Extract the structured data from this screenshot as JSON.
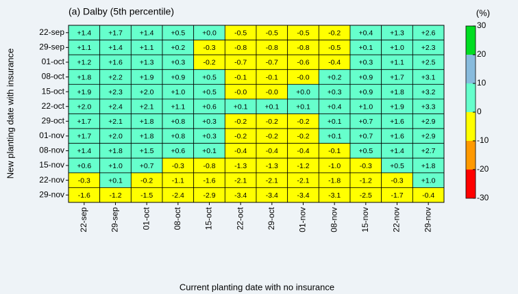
{
  "chart_data": {
    "type": "heatmap",
    "title": "(a) Dalby (5th percentile)",
    "x_label": "Current planting date with no insurance",
    "y_label": "New planting date with insurance",
    "x": [
      "22-sep",
      "29-sep",
      "01-oct",
      "08-oct",
      "15-oct",
      "22-oct",
      "29-oct",
      "01-nov",
      "08-nov",
      "15-nov",
      "22-nov",
      "29-nov"
    ],
    "y": [
      "22-sep",
      "29-sep",
      "01-oct",
      "08-oct",
      "15-oct",
      "22-oct",
      "29-oct",
      "01-nov",
      "08-nov",
      "15-nov",
      "22-nov",
      "29-nov"
    ],
    "values": [
      [
        1.4,
        1.7,
        1.4,
        0.5,
        0.0,
        -0.5,
        -0.5,
        -0.5,
        -0.2,
        0.4,
        1.3,
        2.6
      ],
      [
        1.1,
        1.4,
        1.1,
        0.2,
        -0.3,
        -0.8,
        -0.8,
        -0.8,
        -0.5,
        0.1,
        1.0,
        2.3
      ],
      [
        1.2,
        1.6,
        1.3,
        0.3,
        -0.2,
        -0.7,
        -0.7,
        -0.6,
        -0.4,
        0.3,
        1.1,
        2.5
      ],
      [
        1.8,
        2.2,
        1.9,
        0.9,
        0.5,
        -0.1,
        -0.1,
        -0.0,
        0.2,
        0.9,
        1.7,
        3.1
      ],
      [
        1.9,
        2.3,
        2.0,
        1.0,
        0.5,
        -0.0,
        -0.0,
        0.0,
        0.3,
        0.9,
        1.8,
        3.2
      ],
      [
        2.0,
        2.4,
        2.1,
        1.1,
        0.6,
        0.1,
        0.1,
        0.1,
        0.4,
        1.0,
        1.9,
        3.3
      ],
      [
        1.7,
        2.1,
        1.8,
        0.8,
        0.3,
        -0.2,
        -0.2,
        -0.2,
        0.1,
        0.7,
        1.6,
        2.9
      ],
      [
        1.7,
        2.0,
        1.8,
        0.8,
        0.3,
        -0.2,
        -0.2,
        -0.2,
        0.1,
        0.7,
        1.6,
        2.9
      ],
      [
        1.4,
        1.8,
        1.5,
        0.6,
        0.1,
        -0.4,
        -0.4,
        -0.4,
        -0.1,
        0.5,
        1.4,
        2.7
      ],
      [
        0.6,
        1.0,
        0.7,
        -0.3,
        -0.8,
        -1.3,
        -1.3,
        -1.2,
        -1.0,
        -0.3,
        0.5,
        1.8
      ],
      [
        -0.3,
        0.1,
        -0.2,
        -1.1,
        -1.6,
        -2.1,
        -2.1,
        -2.1,
        -1.8,
        -1.2,
        -0.3,
        1.0
      ],
      [
        -1.6,
        -1.2,
        -1.5,
        -2.4,
        -2.9,
        -3.4,
        -3.4,
        -3.4,
        -3.1,
        -2.5,
        -1.7,
        -0.4
      ]
    ],
    "value_labels": [
      [
        "+1.4",
        "+1.7",
        "+1.4",
        "+0.5",
        "+0.0",
        "-0.5",
        "-0.5",
        "-0.5",
        "-0.2",
        "+0.4",
        "+1.3",
        "+2.6"
      ],
      [
        "+1.1",
        "+1.4",
        "+1.1",
        "+0.2",
        "-0.3",
        "-0.8",
        "-0.8",
        "-0.8",
        "-0.5",
        "+0.1",
        "+1.0",
        "+2.3"
      ],
      [
        "+1.2",
        "+1.6",
        "+1.3",
        "+0.3",
        "-0.2",
        "-0.7",
        "-0.7",
        "-0.6",
        "-0.4",
        "+0.3",
        "+1.1",
        "+2.5"
      ],
      [
        "+1.8",
        "+2.2",
        "+1.9",
        "+0.9",
        "+0.5",
        "-0.1",
        "-0.1",
        "-0.0",
        "+0.2",
        "+0.9",
        "+1.7",
        "+3.1"
      ],
      [
        "+1.9",
        "+2.3",
        "+2.0",
        "+1.0",
        "+0.5",
        "-0.0",
        "-0.0",
        "+0.0",
        "+0.3",
        "+0.9",
        "+1.8",
        "+3.2"
      ],
      [
        "+2.0",
        "+2.4",
        "+2.1",
        "+1.1",
        "+0.6",
        "+0.1",
        "+0.1",
        "+0.1",
        "+0.4",
        "+1.0",
        "+1.9",
        "+3.3"
      ],
      [
        "+1.7",
        "+2.1",
        "+1.8",
        "+0.8",
        "+0.3",
        "-0.2",
        "-0.2",
        "-0.2",
        "+0.1",
        "+0.7",
        "+1.6",
        "+2.9"
      ],
      [
        "+1.7",
        "+2.0",
        "+1.8",
        "+0.8",
        "+0.3",
        "-0.2",
        "-0.2",
        "-0.2",
        "+0.1",
        "+0.7",
        "+1.6",
        "+2.9"
      ],
      [
        "+1.4",
        "+1.8",
        "+1.5",
        "+0.6",
        "+0.1",
        "-0.4",
        "-0.4",
        "-0.4",
        "-0.1",
        "+0.5",
        "+1.4",
        "+2.7"
      ],
      [
        "+0.6",
        "+1.0",
        "+0.7",
        "-0.3",
        "-0.8",
        "-1.3",
        "-1.3",
        "-1.2",
        "-1.0",
        "-0.3",
        "+0.5",
        "+1.8"
      ],
      [
        "-0.3",
        "+0.1",
        "-0.2",
        "-1.1",
        "-1.6",
        "-2.1",
        "-2.1",
        "-2.1",
        "-1.8",
        "-1.2",
        "-0.3",
        "+1.0"
      ],
      [
        "-1.6",
        "-1.2",
        "-1.5",
        "-2.4",
        "-2.9",
        "-3.4",
        "-3.4",
        "-3.4",
        "-3.1",
        "-2.5",
        "-1.7",
        "-0.4"
      ]
    ],
    "colorbar_label": "(%)",
    "clim": [
      -30,
      30
    ],
    "cticks": [
      -30,
      -20,
      -10,
      0,
      10,
      20,
      30
    ],
    "colors": [
      "#ff0000",
      "#ff9900",
      "#ffff00",
      "#66ffcc",
      "#88bbdd",
      "#00dd22"
    ]
  }
}
